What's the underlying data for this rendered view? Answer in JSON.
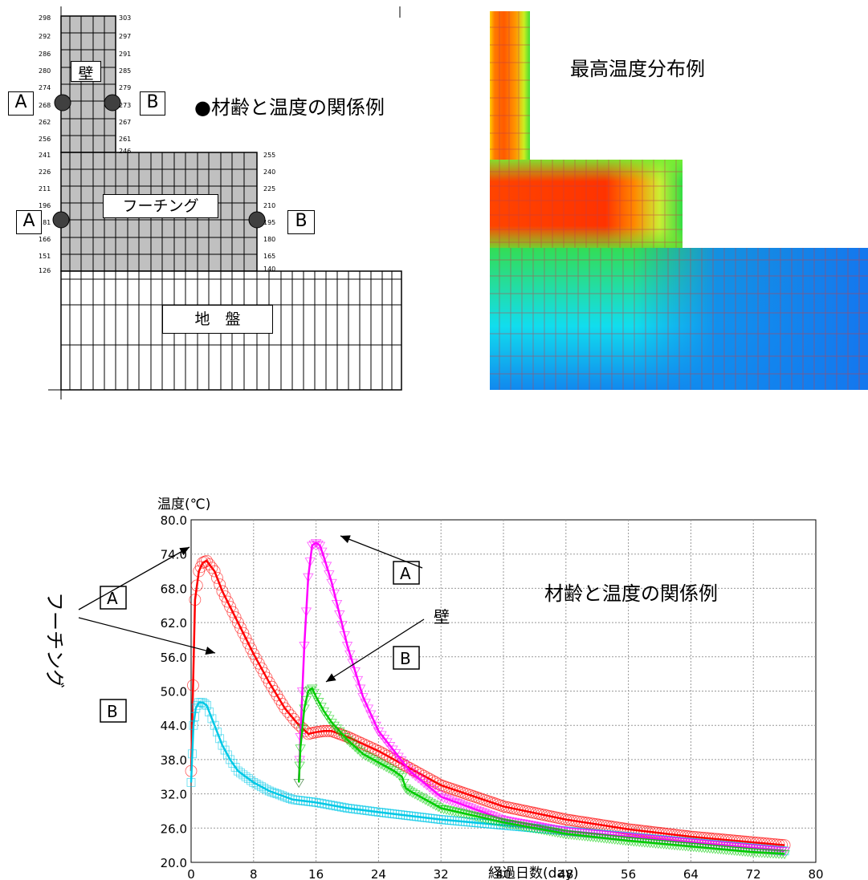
{
  "mesh": {
    "title": "●材齢と温度の関係例",
    "wall_label": "壁",
    "footing_label": "フーチング",
    "ground_label": "地　盤",
    "point_a_wall": "A",
    "point_b_wall": "B",
    "point_a_footing": "A",
    "point_b_footing": "B",
    "left_nodes": [
      "298",
      "292",
      "286",
      "280",
      "274",
      "268",
      "262",
      "256",
      "241",
      "226",
      "211",
      "196",
      "181",
      "166",
      "151",
      "126"
    ],
    "right_nodes": [
      "303",
      "297",
      "291",
      "285",
      "279",
      "273",
      "267",
      "261",
      "246",
      "255",
      "240",
      "225",
      "210",
      "195",
      "180",
      "165",
      "140"
    ]
  },
  "heatmap": {
    "title": "最高温度分布例"
  },
  "chart_data": {
    "type": "line",
    "title": "材齢と温度の関係例",
    "xlabel": "経過日数(day)",
    "ylabel": "温度(℃)",
    "xlim": [
      0,
      80
    ],
    "ylim": [
      20,
      80
    ],
    "xticks": [
      0,
      8,
      16,
      24,
      32,
      40,
      48,
      56,
      64,
      72,
      80
    ],
    "yticks": [
      "20.0",
      "26.0",
      "32.0",
      "38.0",
      "44.0",
      "50.0",
      "56.0",
      "62.0",
      "68.0",
      "74.0",
      "80.0"
    ],
    "grid": true,
    "series": [
      {
        "color": "#ff0000",
        "marker": "circle",
        "x": [
          0,
          0.5,
          1,
          1.5,
          2,
          3,
          4,
          6,
          8,
          10,
          12,
          13.5,
          15,
          16,
          17,
          18,
          20,
          24,
          28,
          32,
          40,
          48,
          56,
          64,
          72,
          76
        ],
        "y": [
          36,
          66,
          71,
          72.5,
          72.8,
          71,
          67.5,
          62,
          56.5,
          51.5,
          47,
          44.5,
          42.5,
          42.8,
          43,
          43,
          42,
          39.5,
          36.5,
          33.5,
          29.8,
          27.5,
          25.8,
          24.5,
          23.5,
          23
        ]
      },
      {
        "color": "#00c8e6",
        "marker": "square",
        "x": [
          0,
          0.3,
          0.6,
          1,
          1.5,
          2,
          3,
          4,
          5,
          6,
          8,
          10,
          13,
          16,
          20,
          24,
          32,
          40,
          48,
          56,
          64,
          72,
          76
        ],
        "y": [
          34,
          44,
          47,
          48,
          48,
          47.5,
          44,
          40.5,
          38,
          36,
          34,
          32.5,
          31,
          30.5,
          29.5,
          28.8,
          27.5,
          26.5,
          25.5,
          24.5,
          23.5,
          22.5,
          22
        ]
      },
      {
        "color": "#ff00ff",
        "marker": "triangle-down",
        "x": [
          13.8,
          14,
          14.5,
          15,
          15.5,
          16,
          16.5,
          17,
          18,
          19,
          20,
          22,
          24,
          28,
          32,
          40,
          48,
          56,
          64,
          72,
          76
        ],
        "y": [
          34,
          42,
          58,
          70,
          75.5,
          76,
          75.5,
          73.5,
          69,
          63.5,
          58,
          49,
          43,
          36,
          31.5,
          27.5,
          25.5,
          24.5,
          23.5,
          22.5,
          22
        ]
      },
      {
        "color": "#00cc00",
        "marker": "triangle-down",
        "x": [
          13.8,
          14,
          14.5,
          15,
          15.5,
          16,
          17,
          18,
          19,
          20,
          22,
          24,
          26,
          27,
          27.5,
          28,
          30,
          32,
          40,
          48,
          56,
          64,
          72,
          76
        ],
        "y": [
          34,
          40,
          47,
          50,
          50.5,
          49,
          46.5,
          44.5,
          43,
          41.5,
          39,
          37.5,
          36,
          35,
          33,
          32.5,
          31,
          29.5,
          27,
          25,
          23.8,
          22.8,
          21.8,
          21.5
        ]
      }
    ],
    "labels": {
      "footing": "フーチング",
      "wall": "壁",
      "footing_a": "A",
      "footing_b": "B",
      "wall_a": "A",
      "wall_b": "B"
    }
  }
}
